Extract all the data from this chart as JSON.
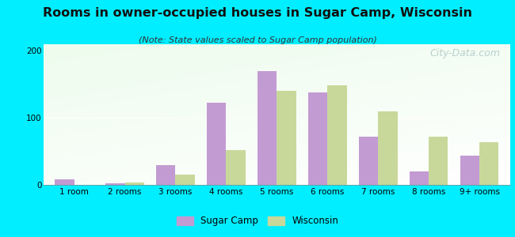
{
  "title": "Rooms in owner-occupied houses in Sugar Camp, Wisconsin",
  "subtitle": "(Note: State values scaled to Sugar Camp population)",
  "categories": [
    "1 room",
    "2 rooms",
    "3 rooms",
    "4 rooms",
    "5 rooms",
    "6 rooms",
    "7 rooms",
    "8 rooms",
    "9+ rooms"
  ],
  "sugar_camp": [
    8,
    2,
    30,
    122,
    170,
    138,
    72,
    20,
    43
  ],
  "wisconsin": [
    0,
    3,
    15,
    52,
    140,
    148,
    110,
    72,
    63
  ],
  "sugar_camp_color": "#c39bd3",
  "wisconsin_color": "#c8d89a",
  "background_outer": "#00eeff",
  "bar_width": 0.38,
  "ylim": [
    0,
    210
  ],
  "yticks": [
    0,
    100,
    200
  ],
  "title_fontsize": 11.5,
  "subtitle_fontsize": 8,
  "tick_fontsize": 7.5,
  "legend_fontsize": 8.5,
  "watermark_text": "City-Data.com",
  "watermark_color": "#adc8c8",
  "watermark_fontsize": 9
}
